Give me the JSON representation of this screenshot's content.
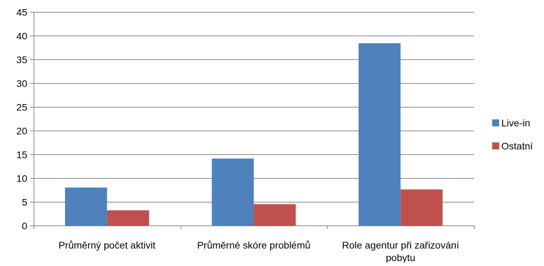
{
  "chart_data": {
    "type": "bar",
    "categories": [
      "Průměrný počet aktivit",
      "Průměrné skóre problémů",
      "Role agentur při zařizování pobytu"
    ],
    "category_lines": [
      [
        "Průměrný počet aktivit"
      ],
      [
        "Průměrné skóre problémů"
      ],
      [
        "Role agentur při zařizování",
        "pobytu"
      ]
    ],
    "series": [
      {
        "name": "Live-in",
        "color": "#4F81BD",
        "values": [
          8.0,
          14.1,
          38.4
        ]
      },
      {
        "name": "Ostatní",
        "color": "#C0504D",
        "values": [
          3.2,
          4.5,
          7.6
        ]
      }
    ],
    "ylim": [
      0,
      45
    ],
    "yticks": [
      "0",
      "5",
      "10",
      "15",
      "20",
      "25",
      "30",
      "35",
      "40",
      "45"
    ],
    "grid": true,
    "legend": "right",
    "title": "",
    "xlabel": "",
    "ylabel": ""
  }
}
